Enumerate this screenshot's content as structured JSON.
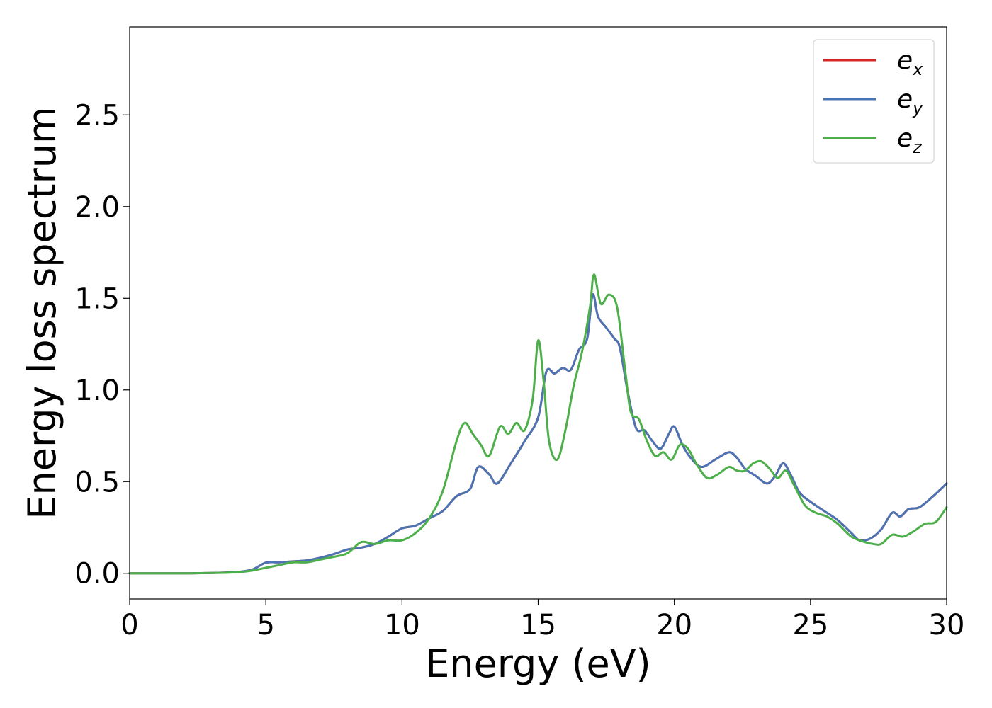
{
  "chart_data": {
    "type": "line",
    "title": "",
    "xlabel": "Energy (eV)",
    "ylabel": "Energy loss spectrum",
    "xlim": [
      0,
      30
    ],
    "ylim": [
      -0.14,
      2.98
    ],
    "xticks": [
      0,
      5,
      10,
      15,
      20,
      25,
      30
    ],
    "xtick_labels": [
      "0",
      "5",
      "10",
      "15",
      "20",
      "25",
      "30"
    ],
    "yticks": [
      0.0,
      0.5,
      1.0,
      1.5,
      2.0,
      2.5
    ],
    "ytick_labels": [
      "0.0",
      "0.5",
      "1.0",
      "1.5",
      "2.0",
      "2.5"
    ],
    "grid": false,
    "legend_position": "top-right",
    "series": [
      {
        "name": "e",
        "subscript": "x",
        "color": "#d62728",
        "x": [
          0,
          2,
          3,
          3.5,
          4,
          4.5,
          5,
          5.5,
          6,
          6.5,
          7,
          7.5,
          8,
          8.5,
          9,
          9.5,
          10,
          10.5,
          11,
          11.5,
          12,
          12.5,
          12.8,
          13.2,
          13.5,
          14,
          14.5,
          15,
          15.3,
          15.6,
          15.9,
          16.2,
          16.5,
          16.8,
          17,
          17.2,
          17.5,
          17.8,
          18,
          18.3,
          18.6,
          18.9,
          19.2,
          19.5,
          19.8,
          20,
          20.3,
          20.6,
          21,
          21.5,
          22,
          22.3,
          22.6,
          23,
          23.4,
          23.7,
          24,
          24.3,
          24.6,
          25,
          25.5,
          26,
          26.5,
          26.8,
          27.2,
          27.6,
          28,
          28.3,
          28.6,
          29,
          29.5,
          30
        ],
        "y": [
          0.0,
          0.0,
          0.002,
          0.004,
          0.008,
          0.02,
          0.058,
          0.06,
          0.065,
          0.07,
          0.085,
          0.105,
          0.13,
          0.14,
          0.16,
          0.2,
          0.245,
          0.26,
          0.3,
          0.34,
          0.42,
          0.46,
          0.58,
          0.54,
          0.49,
          0.6,
          0.72,
          0.85,
          1.1,
          1.09,
          1.12,
          1.11,
          1.22,
          1.28,
          1.52,
          1.4,
          1.34,
          1.28,
          1.23,
          0.98,
          0.79,
          0.78,
          0.72,
          0.68,
          0.76,
          0.8,
          0.7,
          0.63,
          0.58,
          0.62,
          0.66,
          0.63,
          0.57,
          0.53,
          0.49,
          0.53,
          0.6,
          0.53,
          0.44,
          0.39,
          0.34,
          0.29,
          0.22,
          0.18,
          0.19,
          0.24,
          0.33,
          0.31,
          0.35,
          0.36,
          0.42,
          0.49
        ]
      },
      {
        "name": "e",
        "subscript": "y",
        "color": "#4a74b4",
        "x": [
          0,
          2,
          3,
          3.5,
          4,
          4.5,
          5,
          5.5,
          6,
          6.5,
          7,
          7.5,
          8,
          8.5,
          9,
          9.5,
          10,
          10.5,
          11,
          11.5,
          12,
          12.5,
          12.8,
          13.2,
          13.5,
          14,
          14.5,
          15,
          15.3,
          15.6,
          15.9,
          16.2,
          16.5,
          16.8,
          17,
          17.2,
          17.5,
          17.8,
          18,
          18.3,
          18.6,
          18.9,
          19.2,
          19.5,
          19.8,
          20,
          20.3,
          20.6,
          21,
          21.5,
          22,
          22.3,
          22.6,
          23,
          23.4,
          23.7,
          24,
          24.3,
          24.6,
          25,
          25.5,
          26,
          26.5,
          26.8,
          27.2,
          27.6,
          28,
          28.3,
          28.6,
          29,
          29.5,
          30
        ],
        "y": [
          0.0,
          0.0,
          0.002,
          0.004,
          0.008,
          0.02,
          0.058,
          0.06,
          0.065,
          0.07,
          0.085,
          0.105,
          0.13,
          0.14,
          0.16,
          0.2,
          0.245,
          0.26,
          0.3,
          0.34,
          0.42,
          0.46,
          0.58,
          0.54,
          0.49,
          0.6,
          0.72,
          0.85,
          1.1,
          1.09,
          1.12,
          1.11,
          1.22,
          1.28,
          1.52,
          1.4,
          1.34,
          1.28,
          1.23,
          0.98,
          0.79,
          0.78,
          0.72,
          0.68,
          0.76,
          0.8,
          0.7,
          0.63,
          0.58,
          0.62,
          0.66,
          0.63,
          0.57,
          0.53,
          0.49,
          0.53,
          0.6,
          0.53,
          0.44,
          0.39,
          0.34,
          0.29,
          0.22,
          0.18,
          0.19,
          0.24,
          0.33,
          0.31,
          0.35,
          0.36,
          0.42,
          0.49
        ]
      },
      {
        "name": "e",
        "subscript": "z",
        "color": "#4daf4a",
        "x": [
          0,
          2,
          3,
          3.5,
          4,
          4.5,
          5,
          5.5,
          6,
          6.5,
          7,
          7.5,
          8,
          8.5,
          9,
          9.5,
          10,
          10.5,
          11,
          11.5,
          12,
          12.3,
          12.6,
          12.9,
          13.2,
          13.6,
          13.9,
          14.2,
          14.5,
          14.8,
          15,
          15.2,
          15.4,
          15.7,
          16,
          16.3,
          16.6,
          16.9,
          17.05,
          17.3,
          17.6,
          17.9,
          18.2,
          18.4,
          18.7,
          19,
          19.3,
          19.6,
          19.9,
          20.2,
          20.5,
          20.8,
          21.2,
          21.6,
          22,
          22.3,
          22.6,
          22.9,
          23.2,
          23.5,
          23.8,
          24.1,
          24.4,
          24.8,
          25.2,
          25.6,
          26,
          26.5,
          27,
          27.3,
          27.6,
          28,
          28.4,
          28.8,
          29.2,
          29.6,
          30
        ],
        "y": [
          0.0,
          0.0,
          0.002,
          0.003,
          0.006,
          0.015,
          0.03,
          0.045,
          0.06,
          0.06,
          0.075,
          0.09,
          0.11,
          0.17,
          0.16,
          0.18,
          0.18,
          0.22,
          0.3,
          0.45,
          0.72,
          0.82,
          0.76,
          0.7,
          0.64,
          0.8,
          0.76,
          0.82,
          0.78,
          0.95,
          1.27,
          1.05,
          0.72,
          0.62,
          0.78,
          1.02,
          1.2,
          1.45,
          1.63,
          1.47,
          1.52,
          1.45,
          1.1,
          0.88,
          0.84,
          0.72,
          0.64,
          0.66,
          0.62,
          0.7,
          0.68,
          0.6,
          0.52,
          0.54,
          0.58,
          0.56,
          0.56,
          0.6,
          0.61,
          0.57,
          0.52,
          0.56,
          0.48,
          0.37,
          0.33,
          0.31,
          0.27,
          0.2,
          0.17,
          0.16,
          0.16,
          0.21,
          0.2,
          0.23,
          0.27,
          0.28,
          0.36
        ]
      }
    ]
  }
}
